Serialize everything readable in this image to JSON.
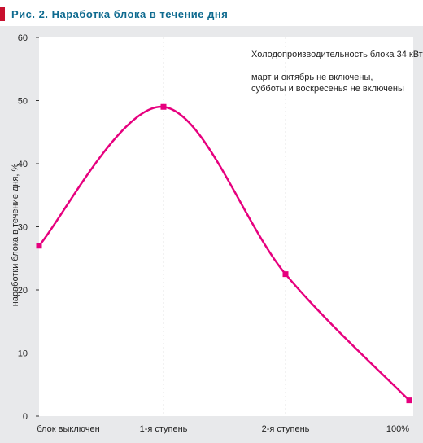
{
  "figure": {
    "caption": "Рис. 2. Наработка блока в течение дня"
  },
  "chart_data": {
    "type": "line",
    "ylabel": "наработки блока в течение дня, %",
    "xlabel": "",
    "ylim": [
      0,
      60
    ],
    "yticks": [
      0,
      10,
      20,
      30,
      40,
      50,
      60
    ],
    "categories": [
      "блок выключен",
      "1-я ступень",
      "2-я ступень",
      "100%"
    ],
    "values": [
      27,
      49,
      22.5,
      2.5
    ],
    "annotations": [
      "Холодопроизводительность блока 34 кВт",
      "март и октябрь не включены,",
      "субботы  и воскресенья не включены"
    ],
    "grid": true,
    "colors": {
      "line": "#e6007e",
      "marker": "#e6007e",
      "plot_bg": "#ffffff",
      "panel_bg": "#e8e9eb",
      "caption_bar": "#c8102e",
      "caption_text": "#0e6a8f"
    }
  }
}
